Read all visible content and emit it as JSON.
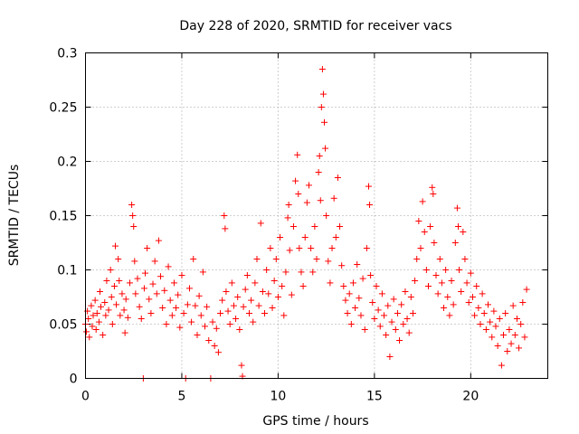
{
  "chart_data": {
    "type": "scatter",
    "title": "Day 228 of 2020, SRMTID for receiver vacs",
    "xlabel": "GPS time / hours",
    "ylabel": "SRMTID / TECUs",
    "xlim": [
      0,
      24
    ],
    "ylim": [
      0,
      0.3
    ],
    "x_ticks": [
      0,
      5,
      10,
      15,
      20
    ],
    "x_tick_labels": [
      "0",
      "5",
      "10",
      "15",
      "20"
    ],
    "y_ticks": [
      0,
      0.05,
      0.1,
      0.15,
      0.2,
      0.25,
      0.3
    ],
    "y_tick_labels": [
      "0",
      "0.05",
      "0.1",
      "0.15",
      "0.2",
      "0.25",
      "0.3"
    ],
    "grid": true,
    "marker": "plus",
    "color": "#ff0000",
    "series": [
      {
        "name": "SRMTID",
        "points": [
          [
            0.0,
            0.05
          ],
          [
            0.05,
            0.043
          ],
          [
            0.1,
            0.062
          ],
          [
            0.15,
            0.055
          ],
          [
            0.2,
            0.038
          ],
          [
            0.3,
            0.067
          ],
          [
            0.35,
            0.048
          ],
          [
            0.4,
            0.058
          ],
          [
            0.5,
            0.072
          ],
          [
            0.55,
            0.045
          ],
          [
            0.6,
            0.06
          ],
          [
            0.7,
            0.052
          ],
          [
            0.75,
            0.08
          ],
          [
            0.8,
            0.066
          ],
          [
            0.9,
            0.04
          ],
          [
            1.0,
            0.07
          ],
          [
            1.05,
            0.058
          ],
          [
            1.1,
            0.09
          ],
          [
            1.2,
            0.063
          ],
          [
            1.3,
            0.1
          ],
          [
            1.35,
            0.075
          ],
          [
            1.4,
            0.05
          ],
          [
            1.5,
            0.085
          ],
          [
            1.55,
            0.122
          ],
          [
            1.6,
            0.068
          ],
          [
            1.7,
            0.11
          ],
          [
            1.75,
            0.09
          ],
          [
            1.8,
            0.058
          ],
          [
            1.9,
            0.078
          ],
          [
            2.0,
            0.063
          ],
          [
            2.05,
            0.042
          ],
          [
            2.1,
            0.073
          ],
          [
            2.2,
            0.056
          ],
          [
            2.3,
            0.088
          ],
          [
            2.4,
            0.16
          ],
          [
            2.45,
            0.15
          ],
          [
            2.5,
            0.14
          ],
          [
            2.55,
            0.108
          ],
          [
            2.6,
            0.078
          ],
          [
            2.7,
            0.092
          ],
          [
            2.8,
            0.066
          ],
          [
            2.9,
            0.055
          ],
          [
            3.0,
            0.0
          ],
          [
            3.05,
            0.083
          ],
          [
            3.1,
            0.097
          ],
          [
            3.2,
            0.12
          ],
          [
            3.3,
            0.073
          ],
          [
            3.4,
            0.06
          ],
          [
            3.5,
            0.087
          ],
          [
            3.6,
            0.108
          ],
          [
            3.7,
            0.078
          ],
          [
            3.8,
            0.127
          ],
          [
            3.9,
            0.094
          ],
          [
            4.0,
            0.065
          ],
          [
            4.1,
            0.081
          ],
          [
            4.2,
            0.05
          ],
          [
            4.3,
            0.103
          ],
          [
            4.4,
            0.072
          ],
          [
            4.5,
            0.058
          ],
          [
            4.6,
            0.088
          ],
          [
            4.7,
            0.065
          ],
          [
            4.8,
            0.077
          ],
          [
            4.9,
            0.047
          ],
          [
            5.0,
            0.095
          ],
          [
            5.1,
            0.06
          ],
          [
            5.2,
            0.0
          ],
          [
            5.3,
            0.068
          ],
          [
            5.4,
            0.083
          ],
          [
            5.5,
            0.052
          ],
          [
            5.6,
            0.11
          ],
          [
            5.7,
            0.067
          ],
          [
            5.8,
            0.04
          ],
          [
            5.9,
            0.076
          ],
          [
            6.0,
            0.058
          ],
          [
            6.1,
            0.098
          ],
          [
            6.2,
            0.048
          ],
          [
            6.3,
            0.066
          ],
          [
            6.4,
            0.035
          ],
          [
            6.5,
            0.0
          ],
          [
            6.6,
            0.052
          ],
          [
            6.7,
            0.03
          ],
          [
            6.8,
            0.046
          ],
          [
            6.9,
            0.024
          ],
          [
            7.0,
            0.06
          ],
          [
            7.1,
            0.072
          ],
          [
            7.2,
            0.15
          ],
          [
            7.25,
            0.138
          ],
          [
            7.3,
            0.08
          ],
          [
            7.4,
            0.062
          ],
          [
            7.5,
            0.05
          ],
          [
            7.6,
            0.088
          ],
          [
            7.7,
            0.067
          ],
          [
            7.8,
            0.055
          ],
          [
            7.9,
            0.075
          ],
          [
            8.0,
            0.045
          ],
          [
            8.1,
            0.012
          ],
          [
            8.15,
            0.002
          ],
          [
            8.2,
            0.066
          ],
          [
            8.3,
            0.082
          ],
          [
            8.4,
            0.095
          ],
          [
            8.5,
            0.06
          ],
          [
            8.6,
            0.072
          ],
          [
            8.7,
            0.052
          ],
          [
            8.8,
            0.088
          ],
          [
            8.9,
            0.11
          ],
          [
            9.0,
            0.067
          ],
          [
            9.1,
            0.143
          ],
          [
            9.2,
            0.08
          ],
          [
            9.3,
            0.06
          ],
          [
            9.4,
            0.1
          ],
          [
            9.5,
            0.078
          ],
          [
            9.6,
            0.12
          ],
          [
            9.7,
            0.065
          ],
          [
            9.8,
            0.09
          ],
          [
            9.9,
            0.11
          ],
          [
            10.0,
            0.075
          ],
          [
            10.1,
            0.13
          ],
          [
            10.2,
            0.085
          ],
          [
            10.3,
            0.058
          ],
          [
            10.4,
            0.098
          ],
          [
            10.5,
            0.148
          ],
          [
            10.55,
            0.16
          ],
          [
            10.6,
            0.118
          ],
          [
            10.7,
            0.077
          ],
          [
            10.8,
            0.14
          ],
          [
            10.9,
            0.182
          ],
          [
            11.0,
            0.206
          ],
          [
            11.05,
            0.17
          ],
          [
            11.1,
            0.12
          ],
          [
            11.2,
            0.098
          ],
          [
            11.3,
            0.085
          ],
          [
            11.4,
            0.13
          ],
          [
            11.5,
            0.162
          ],
          [
            11.6,
            0.178
          ],
          [
            11.7,
            0.12
          ],
          [
            11.8,
            0.098
          ],
          [
            11.9,
            0.14
          ],
          [
            12.0,
            0.11
          ],
          [
            12.1,
            0.19
          ],
          [
            12.15,
            0.205
          ],
          [
            12.2,
            0.164
          ],
          [
            12.25,
            0.25
          ],
          [
            12.3,
            0.285
          ],
          [
            12.35,
            0.262
          ],
          [
            12.4,
            0.236
          ],
          [
            12.45,
            0.212
          ],
          [
            12.5,
            0.15
          ],
          [
            12.6,
            0.108
          ],
          [
            12.7,
            0.088
          ],
          [
            12.8,
            0.12
          ],
          [
            12.9,
            0.166
          ],
          [
            13.0,
            0.13
          ],
          [
            13.1,
            0.185
          ],
          [
            13.2,
            0.14
          ],
          [
            13.3,
            0.104
          ],
          [
            13.4,
            0.085
          ],
          [
            13.5,
            0.072
          ],
          [
            13.6,
            0.06
          ],
          [
            13.7,
            0.078
          ],
          [
            13.8,
            0.05
          ],
          [
            13.9,
            0.088
          ],
          [
            14.0,
            0.065
          ],
          [
            14.1,
            0.105
          ],
          [
            14.2,
            0.074
          ],
          [
            14.3,
            0.058
          ],
          [
            14.4,
            0.092
          ],
          [
            14.5,
            0.045
          ],
          [
            14.6,
            0.12
          ],
          [
            14.7,
            0.177
          ],
          [
            14.75,
            0.16
          ],
          [
            14.8,
            0.095
          ],
          [
            14.9,
            0.07
          ],
          [
            15.0,
            0.055
          ],
          [
            15.1,
            0.085
          ],
          [
            15.2,
            0.063
          ],
          [
            15.3,
            0.048
          ],
          [
            15.4,
            0.078
          ],
          [
            15.5,
            0.058
          ],
          [
            15.6,
            0.04
          ],
          [
            15.7,
            0.067
          ],
          [
            15.8,
            0.02
          ],
          [
            15.9,
            0.052
          ],
          [
            16.0,
            0.073
          ],
          [
            16.1,
            0.045
          ],
          [
            16.2,
            0.06
          ],
          [
            16.3,
            0.035
          ],
          [
            16.4,
            0.068
          ],
          [
            16.5,
            0.05
          ],
          [
            16.6,
            0.08
          ],
          [
            16.7,
            0.055
          ],
          [
            16.8,
            0.042
          ],
          [
            16.9,
            0.075
          ],
          [
            17.0,
            0.06
          ],
          [
            17.1,
            0.09
          ],
          [
            17.2,
            0.11
          ],
          [
            17.3,
            0.145
          ],
          [
            17.4,
            0.12
          ],
          [
            17.5,
            0.163
          ],
          [
            17.6,
            0.135
          ],
          [
            17.7,
            0.1
          ],
          [
            17.8,
            0.085
          ],
          [
            17.9,
            0.14
          ],
          [
            18.0,
            0.176
          ],
          [
            18.05,
            0.17
          ],
          [
            18.1,
            0.125
          ],
          [
            18.2,
            0.095
          ],
          [
            18.3,
            0.078
          ],
          [
            18.4,
            0.11
          ],
          [
            18.5,
            0.088
          ],
          [
            18.6,
            0.065
          ],
          [
            18.7,
            0.1
          ],
          [
            18.8,
            0.075
          ],
          [
            18.9,
            0.058
          ],
          [
            19.0,
            0.09
          ],
          [
            19.1,
            0.068
          ],
          [
            19.2,
            0.125
          ],
          [
            19.3,
            0.157
          ],
          [
            19.35,
            0.14
          ],
          [
            19.4,
            0.1
          ],
          [
            19.5,
            0.08
          ],
          [
            19.6,
            0.135
          ],
          [
            19.7,
            0.11
          ],
          [
            19.8,
            0.088
          ],
          [
            19.9,
            0.07
          ],
          [
            20.0,
            0.097
          ],
          [
            20.1,
            0.075
          ],
          [
            20.2,
            0.058
          ],
          [
            20.3,
            0.085
          ],
          [
            20.4,
            0.065
          ],
          [
            20.5,
            0.05
          ],
          [
            20.6,
            0.078
          ],
          [
            20.7,
            0.06
          ],
          [
            20.8,
            0.045
          ],
          [
            20.9,
            0.068
          ],
          [
            21.0,
            0.052
          ],
          [
            21.1,
            0.038
          ],
          [
            21.2,
            0.062
          ],
          [
            21.3,
            0.048
          ],
          [
            21.4,
            0.03
          ],
          [
            21.5,
            0.055
          ],
          [
            21.6,
            0.012
          ],
          [
            21.7,
            0.04
          ],
          [
            21.8,
            0.06
          ],
          [
            21.9,
            0.025
          ],
          [
            22.0,
            0.045
          ],
          [
            22.1,
            0.032
          ],
          [
            22.2,
            0.067
          ],
          [
            22.3,
            0.04
          ],
          [
            22.4,
            0.055
          ],
          [
            22.5,
            0.028
          ],
          [
            22.6,
            0.05
          ],
          [
            22.7,
            0.07
          ],
          [
            22.8,
            0.038
          ],
          [
            22.9,
            0.082
          ]
        ]
      }
    ]
  }
}
